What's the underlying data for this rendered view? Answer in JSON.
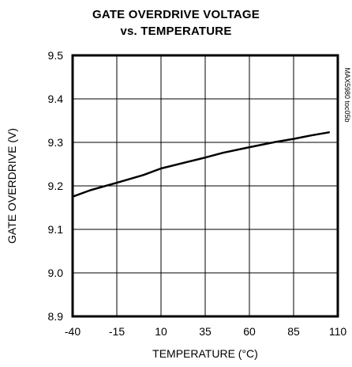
{
  "chart_data": {
    "type": "line",
    "title": "GATE OVERDRIVE VOLTAGE",
    "subtitle": "vs. TEMPERATURE",
    "xlabel": "TEMPERATURE (°C)",
    "ylabel": "GATE OVERDRIVE (V)",
    "side_code": "MAX5980 toc05b",
    "xlim": [
      -40,
      110
    ],
    "ylim": [
      8.9,
      9.5
    ],
    "x_ticks": [
      -40,
      -15,
      10,
      35,
      60,
      85,
      110
    ],
    "x_tick_labels": [
      "-40",
      "-15",
      "10",
      "35",
      "60",
      "85",
      "110"
    ],
    "y_ticks": [
      8.9,
      9.0,
      9.1,
      9.2,
      9.3,
      9.4,
      9.5
    ],
    "y_tick_labels": [
      "8.9",
      "9.0",
      "9.1",
      "9.2",
      "9.3",
      "9.4",
      "9.5"
    ],
    "grid": true,
    "series": [
      {
        "x": [
          -40,
          -30,
          -15,
          0,
          10,
          25,
          35,
          45,
          60,
          75,
          85,
          95,
          105
        ],
        "y": [
          9.175,
          9.19,
          9.207,
          9.225,
          9.24,
          9.255,
          9.265,
          9.276,
          9.289,
          9.301,
          9.308,
          9.316,
          9.323
        ]
      }
    ]
  }
}
